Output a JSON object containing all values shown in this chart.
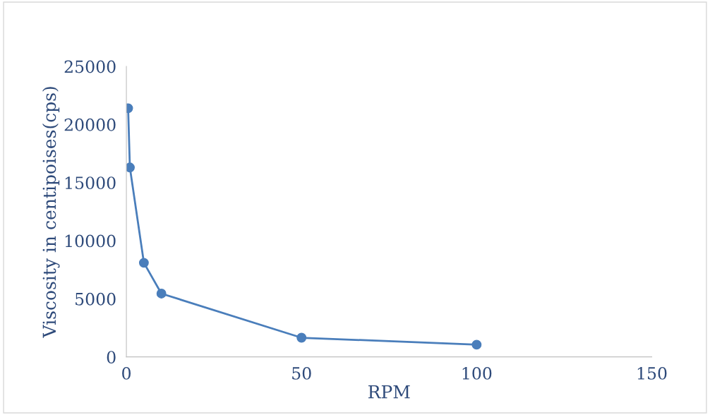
{
  "chart_data": {
    "type": "line",
    "xlabel": "RPM",
    "ylabel": "Viscosity in centipoises(cps)",
    "x": [
      0.5,
      1,
      5,
      10,
      50,
      100
    ],
    "series": [
      {
        "color": "#4a7ebb",
        "values": [
          21400,
          16300,
          8100,
          5450,
          1650,
          1050
        ]
      }
    ],
    "xlim": [
      0,
      150
    ],
    "xticks": [
      0,
      50,
      100,
      150
    ],
    "ylim": [
      0,
      25000
    ],
    "yticks": [
      0,
      5000,
      10000,
      15000,
      20000,
      25000
    ],
    "marker": "circle",
    "line_style": "solid",
    "grid": false,
    "legend": false
  }
}
